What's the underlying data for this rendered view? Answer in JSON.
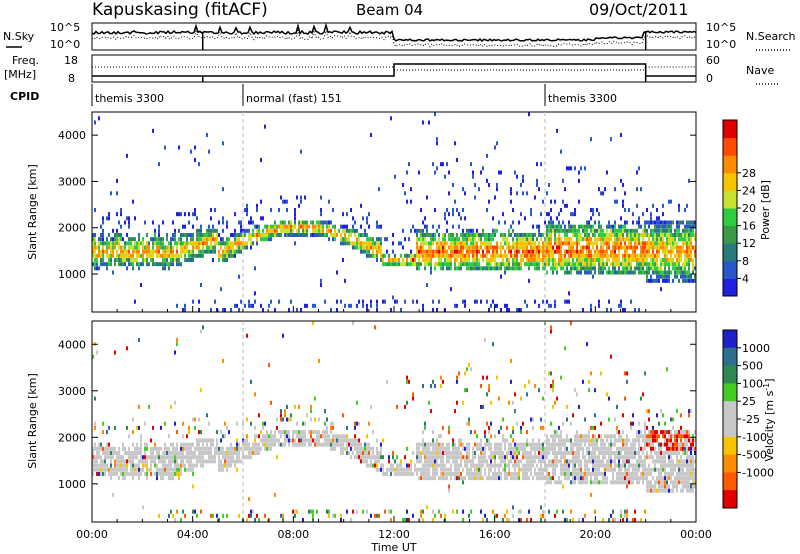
{
  "header": {
    "station": "Kapuskasing (fitACF)",
    "beam": "Beam 04",
    "date": "09/Oct/2011"
  },
  "params": {
    "nsky_label": "N.Sky",
    "nsky_ticks": [
      "10^5",
      "10^0"
    ],
    "nsearch_label": "N.Search",
    "nsearch_ticks": [
      "10^5",
      "10^0"
    ],
    "freq_label": "Freq.",
    "freq_unit": "[MHz]",
    "freq_ticks": [
      "18",
      "8"
    ],
    "nave_label": "Nave",
    "nave_ticks": [
      "60",
      "0"
    ]
  },
  "cpid": {
    "label": "CPID",
    "segments": [
      {
        "name": "themis 3300",
        "start": 0
      },
      {
        "name": "normal (fast) 151",
        "start": 6
      },
      {
        "name": "themis 3300",
        "start": 18
      }
    ]
  },
  "chart_data": [
    {
      "type": "heatmap",
      "panel": "power",
      "ylabel": "Slant Range [km]",
      "xlabel": "",
      "xlim": [
        0,
        24
      ],
      "ylim": [
        180,
        4500
      ],
      "yticks": [
        "1000",
        "2000",
        "3000",
        "4000"
      ],
      "colorbar_label": "Power [dB]",
      "colorbar_ticks": [
        "4",
        "8",
        "12",
        "16",
        "20",
        "24",
        "28"
      ],
      "colorscale": [
        "#2020e0",
        "#2a58c8",
        "#2a7a7a",
        "#3a9a4a",
        "#2ecc40",
        "#c8e030",
        "#f7c400",
        "#ff8c00",
        "#ff4a00",
        "#e00000"
      ]
    },
    {
      "type": "heatmap",
      "panel": "velocity",
      "ylabel": "Slant Range [km]",
      "xlabel": "Time UT",
      "xlim": [
        0,
        24
      ],
      "ylim": [
        180,
        4500
      ],
      "yticks": [
        "1000",
        "2000",
        "3000",
        "4000"
      ],
      "xticks": [
        "00:00",
        "04:00",
        "08:00",
        "12:00",
        "16:00",
        "20:00",
        "00:00"
      ],
      "colorbar_label": "Velocity [m s",
      "colorbar_label_sup": "-1",
      "colorbar_label_end": "]",
      "colorbar_ticks": [
        "1000",
        "500",
        "100",
        "25",
        "-25",
        "-100",
        "-500",
        "-1000"
      ],
      "colorscale": [
        "#2020c8",
        "#2e6e8e",
        "#2e8a4e",
        "#44cc22",
        "#c8c8c8",
        "#c8c8c8",
        "#f7c400",
        "#ff8c00",
        "#ff5a00",
        "#e00000"
      ]
    }
  ]
}
